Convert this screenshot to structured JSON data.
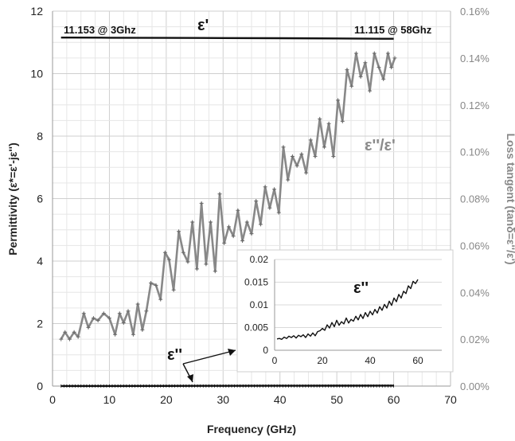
{
  "chart_data": {
    "type": "line",
    "xlabel": "Frequency (GHz)",
    "ylabel_left": "Permittivity (ε*=ε'-jε'')",
    "ylabel_right": "Loss tangent (tanδ=ε''/ε')",
    "xlim": [
      0,
      70
    ],
    "ylim_left": [
      0,
      12
    ],
    "ylim_right": [
      0,
      0.0016
    ],
    "x_ticks": [
      "0",
      "10",
      "20",
      "30",
      "40",
      "50",
      "60",
      "70"
    ],
    "y_left_ticks": [
      "0",
      "2",
      "4",
      "6",
      "8",
      "10",
      "12"
    ],
    "y_right_ticks": [
      "0.00%",
      "0.02%",
      "0.04%",
      "0.06%",
      "0.08%",
      "0.10%",
      "0.12%",
      "0.14%",
      "0.16%"
    ],
    "grid": true,
    "colors": {
      "eps_real": "#111111",
      "loss_tangent": "#888888",
      "eps_imag": "#111111",
      "grid": "#d4d4d4"
    },
    "series": [
      {
        "name": "ε'",
        "axis": "left",
        "x": [
          1.5,
          3,
          10,
          20,
          30,
          40,
          50,
          58,
          60
        ],
        "y": [
          11.153,
          11.153,
          11.15,
          11.145,
          11.14,
          11.135,
          11.125,
          11.115,
          11.115
        ]
      },
      {
        "name": "ε''/ε'",
        "axis": "right",
        "x": [
          1.5,
          2.2,
          3,
          3.8,
          4.5,
          5.5,
          6.3,
          7.2,
          8,
          9,
          10,
          11,
          11.8,
          12.5,
          13.3,
          14.2,
          15,
          15.8,
          16.5,
          17.3,
          18.2,
          19,
          19.8,
          20.5,
          21.3,
          22.2,
          23,
          23.8,
          24.6,
          25.4,
          26.2,
          27,
          27.8,
          28.6,
          29.4,
          30.2,
          31,
          31.8,
          32.6,
          33.4,
          34.2,
          35,
          35.8,
          36.6,
          37.4,
          38.2,
          39,
          39.8,
          40.6,
          41.4,
          42.2,
          43,
          43.8,
          44.6,
          45.4,
          46.2,
          47,
          47.8,
          48.6,
          49.4,
          50.2,
          51,
          51.8,
          52.6,
          53.4,
          54.2,
          55,
          55.8,
          56.6,
          57.4,
          58.2,
          59,
          59.6,
          60.2
        ],
        "y": [
          0.0002,
          0.00023,
          0.0002,
          0.00023,
          0.00021,
          0.00031,
          0.00025,
          0.00029,
          0.00028,
          0.00031,
          0.00029,
          0.00022,
          0.00031,
          0.00027,
          0.00032,
          0.00022,
          0.00035,
          0.00024,
          0.00032,
          0.00044,
          0.00043,
          0.00037,
          0.00057,
          0.00054,
          0.00041,
          0.00066,
          0.00057,
          0.00053,
          0.0007,
          0.0005,
          0.00078,
          0.00052,
          0.0007,
          0.00049,
          0.00082,
          0.00061,
          0.00068,
          0.00064,
          0.00075,
          0.00062,
          0.0007,
          0.00065,
          0.00079,
          0.00069,
          0.00085,
          0.00076,
          0.00084,
          0.00074,
          0.00102,
          0.00088,
          0.00098,
          0.00094,
          0.00099,
          0.00091,
          0.00105,
          0.00098,
          0.00114,
          0.00102,
          0.00112,
          0.00098,
          0.00122,
          0.00113,
          0.00135,
          0.00128,
          0.00142,
          0.00132,
          0.00138,
          0.00126,
          0.00142,
          0.00136,
          0.00131,
          0.00142,
          0.00136,
          0.0014
        ]
      },
      {
        "name": "ε''",
        "axis": "left",
        "x": [
          1.5,
          10,
          20,
          30,
          40,
          50,
          60
        ],
        "y": [
          0.003,
          0.003,
          0.005,
          0.007,
          0.009,
          0.012,
          0.015
        ]
      }
    ],
    "annotations": {
      "start_label": "11.153 @ 3Ghz",
      "end_label": "11.115 @ 58Ghz",
      "eps_real_label": "ε'",
      "loss_label": "ε''/ε'",
      "eps_imag_label": "ε''",
      "inset_label": "ε''"
    },
    "inset": {
      "series_name": "ε''",
      "xlim": [
        0,
        70
      ],
      "ylim": [
        0,
        0.02
      ],
      "x_ticks": [
        "0",
        "20",
        "40",
        "60"
      ],
      "y_ticks": [
        "0",
        "0.005",
        "0.01",
        "0.015",
        "0.02"
      ],
      "x": [
        1,
        2,
        3,
        4,
        5,
        6,
        7,
        8,
        9,
        10,
        11,
        12,
        13,
        14,
        15,
        16,
        17,
        18,
        19,
        20,
        21,
        22,
        23,
        24,
        25,
        26,
        27,
        28,
        29,
        30,
        31,
        32,
        33,
        34,
        35,
        36,
        37,
        38,
        39,
        40,
        41,
        42,
        43,
        44,
        45,
        46,
        47,
        48,
        49,
        50,
        51,
        52,
        53,
        54,
        55,
        56,
        57,
        58,
        59,
        60
      ],
      "y": [
        0.0025,
        0.0026,
        0.0024,
        0.0029,
        0.0026,
        0.0031,
        0.0028,
        0.0032,
        0.0027,
        0.0033,
        0.003,
        0.0034,
        0.0028,
        0.0036,
        0.0031,
        0.0038,
        0.0032,
        0.0041,
        0.0043,
        0.0048,
        0.0044,
        0.0056,
        0.0049,
        0.0061,
        0.0052,
        0.0066,
        0.0055,
        0.0063,
        0.0058,
        0.0071,
        0.006,
        0.0068,
        0.0064,
        0.0075,
        0.0067,
        0.0079,
        0.007,
        0.0083,
        0.0074,
        0.0086,
        0.0078,
        0.009,
        0.0082,
        0.0096,
        0.0088,
        0.0101,
        0.0093,
        0.0108,
        0.0099,
        0.0115,
        0.0107,
        0.0123,
        0.0115,
        0.013,
        0.0125,
        0.0142,
        0.0136,
        0.0152,
        0.0147,
        0.0156
      ]
    }
  }
}
